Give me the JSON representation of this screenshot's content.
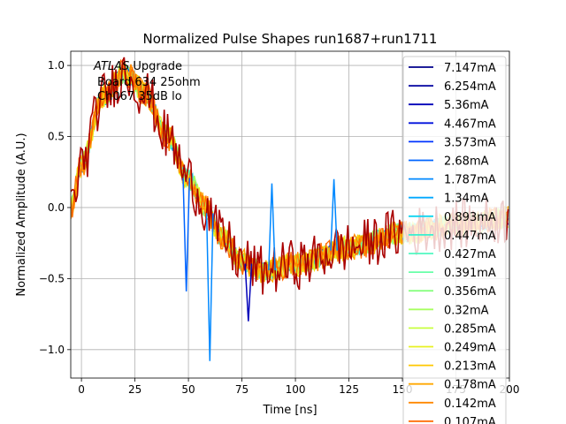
{
  "chart_data": {
    "type": "line",
    "title": "Normalized Pulse Shapes run1687+run1711",
    "xlabel": "Time [ns]",
    "ylabel": "Normalized Amplitude (A.U.)",
    "xlim": [
      -5,
      200
    ],
    "ylim": [
      -1.2,
      1.1
    ],
    "grid": true,
    "xticks": [
      0,
      25,
      50,
      75,
      100,
      125,
      150,
      175,
      200
    ],
    "xtick_labels": [
      "0",
      "25",
      "50",
      "75",
      "100",
      "125",
      "150",
      "175",
      "200"
    ],
    "yticks": [
      -1.0,
      -0.5,
      0.0,
      0.5,
      1.0
    ],
    "ytick_labels": [
      "−1.0",
      "−0.5",
      "0.0",
      "0.5",
      "1.0"
    ],
    "annotation": {
      "italic": "ATLAS",
      "suffix": " Upgrade",
      "line2": "Board 634 25ohm",
      "line3": "Ch067 35dB lo"
    },
    "legend_position": "upper right (extends beyond axes bottom)",
    "series": [
      {
        "name": "7.147mA",
        "color": "#00008b"
      },
      {
        "name": "6.254mA",
        "color": "#00009f"
      },
      {
        "name": "5.36mA",
        "color": "#0000b8"
      },
      {
        "name": "4.467mA",
        "color": "#0010dc"
      },
      {
        "name": "3.573mA",
        "color": "#0034ff"
      },
      {
        "name": "2.68mA",
        "color": "#0064ff"
      },
      {
        "name": "1.787mA",
        "color": "#0088ff"
      },
      {
        "name": "1.34mA",
        "color": "#00a8ff"
      },
      {
        "name": "0.893mA",
        "color": "#10d4f0"
      },
      {
        "name": "0.447mA",
        "color": "#38f0d0"
      },
      {
        "name": "0.427mA",
        "color": "#50f8c0"
      },
      {
        "name": "0.391mA",
        "color": "#68ffa8"
      },
      {
        "name": "0.356mA",
        "color": "#88ff80"
      },
      {
        "name": "0.32mA",
        "color": "#a8ff60"
      },
      {
        "name": "0.285mA",
        "color": "#c8ff40"
      },
      {
        "name": "0.249mA",
        "color": "#e8f020"
      },
      {
        "name": "0.213mA",
        "color": "#ffc800"
      },
      {
        "name": "0.178mA",
        "color": "#ffa800"
      },
      {
        "name": "0.142mA",
        "color": "#ff8800"
      },
      {
        "name": "0.107mA",
        "color": "#ff6a00"
      }
    ],
    "pulse_model": {
      "description": "Approximate shape shared by all series: rises from ~0 at t=-5ns to ~0.95 peak near 20ns, crosses zero near 58ns, undershoot minimum ~-0.45 near 85ns, recovers toward ~-0.1 by 200ns; plus noise.",
      "key_points": [
        [
          -5,
          0.0
        ],
        [
          0,
          0.3
        ],
        [
          10,
          0.78
        ],
        [
          20,
          0.95
        ],
        [
          30,
          0.8
        ],
        [
          40,
          0.5
        ],
        [
          50,
          0.2
        ],
        [
          58,
          0.0
        ],
        [
          65,
          -0.2
        ],
        [
          75,
          -0.38
        ],
        [
          85,
          -0.45
        ],
        [
          100,
          -0.4
        ],
        [
          125,
          -0.28
        ],
        [
          150,
          -0.18
        ],
        [
          175,
          -0.12
        ],
        [
          200,
          -0.08
        ]
      ],
      "noisy_trace_color": "#aa0000",
      "spikes": [
        {
          "color": "#0088ff",
          "t": 60,
          "y": -1.08
        },
        {
          "color": "#0088ff",
          "t": 89,
          "y": 0.17
        },
        {
          "color": "#0088ff",
          "t": 118,
          "y": 0.2
        },
        {
          "color": "#0064ff",
          "t": 49,
          "y": -0.59
        },
        {
          "color": "#0000b8",
          "t": 78,
          "y": -0.8
        }
      ]
    }
  }
}
